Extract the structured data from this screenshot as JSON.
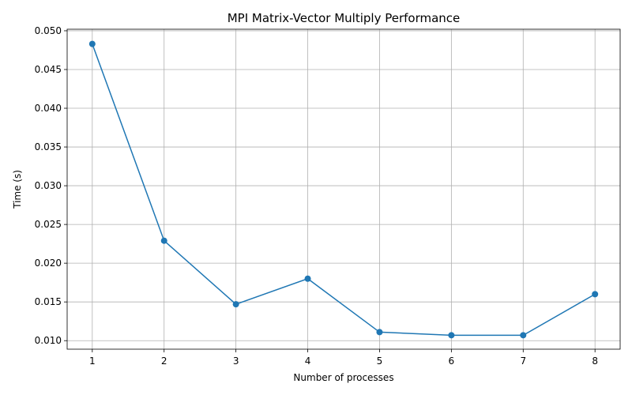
{
  "chart_data": {
    "type": "line",
    "title": "MPI Matrix-Vector Multiply Performance",
    "xlabel": "Number of processes",
    "ylabel": "Time (s)",
    "x": [
      1,
      2,
      3,
      4,
      5,
      6,
      7,
      8
    ],
    "series": [
      {
        "values": [
          0.0483,
          0.0229,
          0.0147,
          0.018,
          0.0111,
          0.0107,
          0.0107,
          0.016
        ],
        "color": "#1f77b4",
        "marker": "circle"
      }
    ],
    "x_ticks": [
      "1",
      "2",
      "3",
      "4",
      "5",
      "6",
      "7",
      "8"
    ],
    "y_ticks": [
      "0.010",
      "0.015",
      "0.020",
      "0.025",
      "0.030",
      "0.035",
      "0.040",
      "0.045",
      "0.050"
    ],
    "xlim": [
      0.65,
      8.35
    ],
    "ylim": [
      0.0089,
      0.0502
    ],
    "grid": true,
    "legend": "none"
  }
}
